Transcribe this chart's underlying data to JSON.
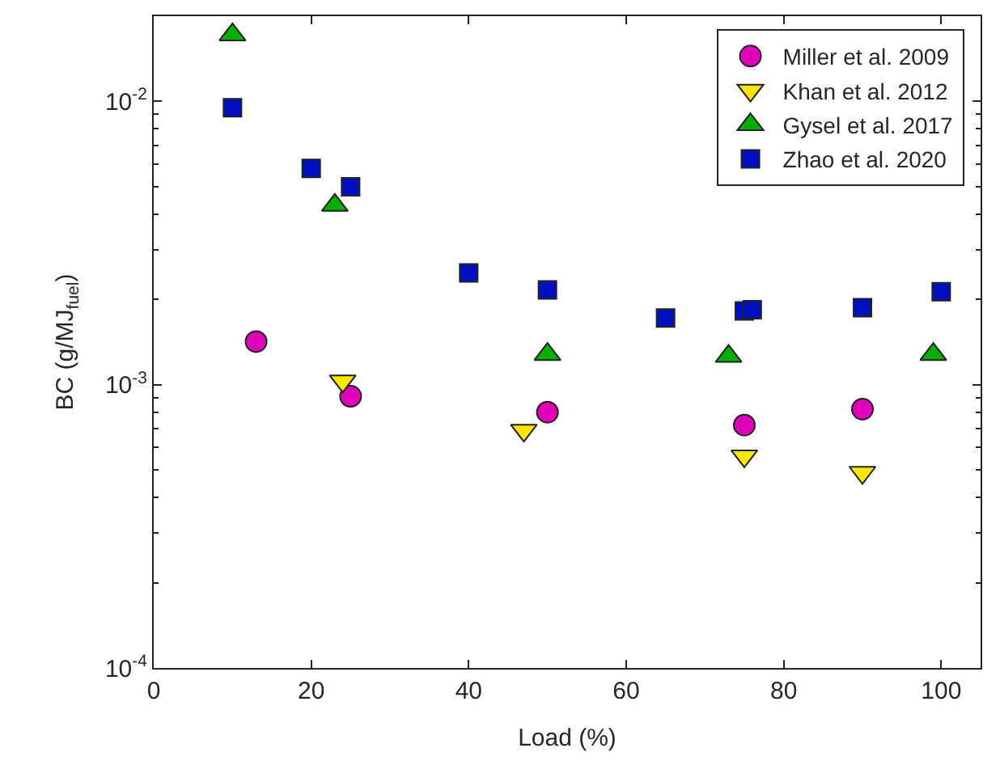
{
  "chart_data": {
    "type": "scatter",
    "xlabel": "Load (%)",
    "ylabel": "BC (g/MJ$_{fuel}$)",
    "log": "y",
    "legend": "top right",
    "xlim": [
      0,
      105
    ],
    "xticks": [
      0,
      20,
      40,
      60,
      80,
      100
    ],
    "ylim": [
      0.0001,
      0.02
    ],
    "yticks": [
      {
        "value": 0.0001,
        "label": "10$^{-4}$"
      },
      {
        "value": 0.001,
        "label": "10$^{-3}$"
      },
      {
        "value": 0.01,
        "label": "10$^{-2}$"
      }
    ],
    "series": [
      {
        "name": "Miller et al. 2009",
        "color": "#e000b8",
        "marker": "circle",
        "x": [
          13,
          25,
          50,
          75,
          90
        ],
        "values": [
          0.00142,
          0.00091,
          0.0008,
          0.00072,
          0.00082
        ]
      },
      {
        "name": "Khan et al. 2012",
        "color": "#ffe600",
        "marker": "triangle-down",
        "x": [
          24,
          47,
          75,
          90
        ],
        "values": [
          0.00103,
          0.00069,
          0.00056,
          0.00049
        ]
      },
      {
        "name": "Gysel et al. 2017",
        "color": "#00b000",
        "marker": "triangle",
        "x": [
          10,
          23,
          50,
          73,
          99
        ],
        "values": [
          0.0172,
          0.0043,
          0.00128,
          0.00126,
          0.00128
        ]
      },
      {
        "name": "Zhao et al. 2020",
        "color": "#0010c0",
        "marker": "square",
        "x": [
          10,
          20,
          25,
          40,
          50,
          65,
          75,
          76,
          90,
          100
        ],
        "values": [
          0.0095,
          0.0058,
          0.005,
          0.00248,
          0.00216,
          0.00172,
          0.00182,
          0.00184,
          0.00187,
          0.00213
        ]
      }
    ]
  }
}
